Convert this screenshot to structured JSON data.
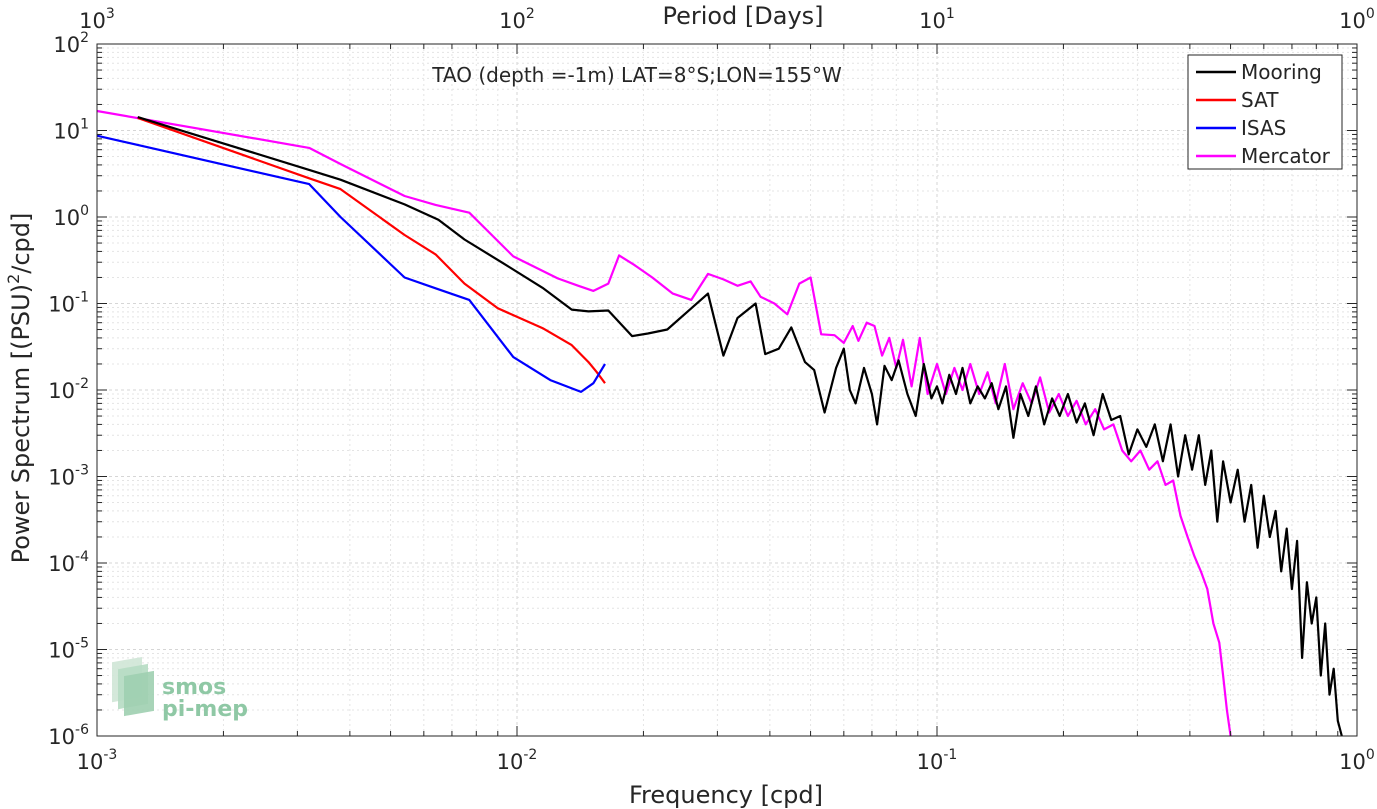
{
  "chart_data": {
    "type": "line",
    "title": "TAO (depth =-1m) LAT=8°S;LON=155°W",
    "xlabel": "Frequency [cpd]",
    "ylabel": "Power Spectrum [(PSU)",
    "ylabel_sup": "2",
    "ylabel_tail": "/cpd]",
    "top_xlabel": "Period [Days]",
    "x_scale": "log",
    "y_scale": "log",
    "xlim": [
      0.001,
      1
    ],
    "ylim": [
      1e-06,
      100
    ],
    "grid": true,
    "legend_position": "top-right",
    "x_ticks": [
      {
        "value": 0.001,
        "base": "10",
        "exp": "-3"
      },
      {
        "value": 0.01,
        "base": "10",
        "exp": "-2"
      },
      {
        "value": 0.1,
        "base": "10",
        "exp": "-1"
      },
      {
        "value": 1,
        "base": "10",
        "exp": "0"
      }
    ],
    "y_ticks": [
      {
        "value": 1e-06,
        "base": "10",
        "exp": "-6"
      },
      {
        "value": 1e-05,
        "base": "10",
        "exp": "-5"
      },
      {
        "value": 0.0001,
        "base": "10",
        "exp": "-4"
      },
      {
        "value": 0.001,
        "base": "10",
        "exp": "-3"
      },
      {
        "value": 0.01,
        "base": "10",
        "exp": "-2"
      },
      {
        "value": 0.1,
        "base": "10",
        "exp": "-1"
      },
      {
        "value": 1,
        "base": "10",
        "exp": "0"
      },
      {
        "value": 10,
        "base": "10",
        "exp": "1"
      },
      {
        "value": 100,
        "base": "10",
        "exp": "2"
      }
    ],
    "top_ticks": [
      {
        "value": 0.001,
        "base": "10",
        "exp": "3"
      },
      {
        "value": 0.01,
        "base": "10",
        "exp": "2"
      },
      {
        "value": 0.1,
        "base": "10",
        "exp": "1"
      },
      {
        "value": 1,
        "base": "10",
        "exp": "0"
      }
    ],
    "series": [
      {
        "name": "Mooring",
        "color": "#000000",
        "x": [
          0.00125,
          0.0032,
          0.0038,
          0.0054,
          0.0065,
          0.0075,
          0.0094,
          0.0115,
          0.0135,
          0.0148,
          0.0165,
          0.0188,
          0.0205,
          0.0228,
          0.026,
          0.0285,
          0.031,
          0.0335,
          0.037,
          0.039,
          0.042,
          0.045,
          0.0485,
          0.051,
          0.054,
          0.0575,
          0.06,
          0.062,
          0.064,
          0.067,
          0.07,
          0.072,
          0.075,
          0.078,
          0.081,
          0.085,
          0.089,
          0.093,
          0.097,
          0.1,
          0.103,
          0.107,
          0.111,
          0.115,
          0.12,
          0.125,
          0.13,
          0.135,
          0.14,
          0.146,
          0.152,
          0.158,
          0.165,
          0.172,
          0.18,
          0.188,
          0.196,
          0.205,
          0.215,
          0.225,
          0.236,
          0.248,
          0.26,
          0.273,
          0.286,
          0.3,
          0.315,
          0.33,
          0.345,
          0.36,
          0.375,
          0.39,
          0.405,
          0.42,
          0.435,
          0.45,
          0.465,
          0.48,
          0.5,
          0.52,
          0.54,
          0.56,
          0.58,
          0.6,
          0.62,
          0.64,
          0.66,
          0.68,
          0.7,
          0.72,
          0.74,
          0.76,
          0.78,
          0.8,
          0.82,
          0.84,
          0.86,
          0.88,
          0.9,
          0.92
        ],
        "y": [
          14.3,
          3.5,
          2.7,
          1.4,
          0.93,
          0.55,
          0.28,
          0.152,
          0.085,
          0.081,
          0.083,
          0.042,
          0.045,
          0.05,
          0.088,
          0.13,
          0.025,
          0.068,
          0.1,
          0.026,
          0.03,
          0.053,
          0.021,
          0.017,
          0.0055,
          0.018,
          0.03,
          0.01,
          0.007,
          0.018,
          0.009,
          0.004,
          0.019,
          0.013,
          0.022,
          0.009,
          0.005,
          0.02,
          0.008,
          0.011,
          0.007,
          0.015,
          0.009,
          0.018,
          0.007,
          0.011,
          0.008,
          0.012,
          0.006,
          0.011,
          0.0028,
          0.009,
          0.005,
          0.011,
          0.004,
          0.008,
          0.005,
          0.009,
          0.0042,
          0.007,
          0.003,
          0.009,
          0.0045,
          0.005,
          0.0018,
          0.0035,
          0.0022,
          0.004,
          0.0015,
          0.004,
          0.001,
          0.003,
          0.0012,
          0.003,
          0.0008,
          0.002,
          0.0003,
          0.0015,
          0.0005,
          0.0012,
          0.0003,
          0.0008,
          0.00015,
          0.0006,
          0.0002,
          0.0004,
          8e-05,
          0.00025,
          5e-05,
          0.00018,
          8e-06,
          6e-05,
          2e-05,
          4e-05,
          5e-06,
          2e-05,
          3e-06,
          6e-06,
          1.5e-06,
          1e-06
        ]
      },
      {
        "name": "SAT",
        "color": "#ff0000",
        "x": [
          0.00125,
          0.0032,
          0.0038,
          0.0054,
          0.0064,
          0.0075,
          0.009,
          0.0115,
          0.0135,
          0.0148,
          0.0155,
          0.0162
        ],
        "y": [
          14.0,
          2.8,
          2.1,
          0.62,
          0.37,
          0.17,
          0.088,
          0.052,
          0.033,
          0.021,
          0.016,
          0.012
        ]
      },
      {
        "name": "ISAS",
        "color": "#0000ff",
        "x": [
          0.001,
          0.0032,
          0.0038,
          0.0054,
          0.0064,
          0.0077,
          0.0098,
          0.012,
          0.0142,
          0.0152,
          0.0162
        ],
        "y": [
          8.7,
          2.4,
          1.0,
          0.2,
          0.15,
          0.11,
          0.024,
          0.013,
          0.0095,
          0.012,
          0.02
        ],
        "name_key": "ISAS"
      },
      {
        "name": "Mercator",
        "color": "#ff00ff",
        "x": [
          0.001,
          0.0032,
          0.0038,
          0.0054,
          0.0064,
          0.0077,
          0.0098,
          0.0125,
          0.014,
          0.0152,
          0.0165,
          0.0175,
          0.019,
          0.021,
          0.0235,
          0.026,
          0.0285,
          0.031,
          0.0335,
          0.036,
          0.038,
          0.041,
          0.044,
          0.047,
          0.05,
          0.053,
          0.057,
          0.06,
          0.063,
          0.065,
          0.068,
          0.071,
          0.074,
          0.077,
          0.08,
          0.083,
          0.087,
          0.091,
          0.095,
          0.1,
          0.105,
          0.11,
          0.115,
          0.12,
          0.126,
          0.132,
          0.138,
          0.145,
          0.152,
          0.16,
          0.168,
          0.176,
          0.185,
          0.195,
          0.205,
          0.215,
          0.226,
          0.238,
          0.25,
          0.263,
          0.276,
          0.29,
          0.305,
          0.32,
          0.335,
          0.35,
          0.365,
          0.38,
          0.395,
          0.41,
          0.425,
          0.44,
          0.455,
          0.47,
          0.48,
          0.49,
          0.5
        ],
        "y": [
          16.8,
          6.3,
          4.1,
          1.75,
          1.38,
          1.12,
          0.35,
          0.195,
          0.16,
          0.14,
          0.17,
          0.36,
          0.28,
          0.2,
          0.13,
          0.11,
          0.22,
          0.19,
          0.16,
          0.18,
          0.12,
          0.1,
          0.075,
          0.17,
          0.2,
          0.044,
          0.043,
          0.035,
          0.055,
          0.037,
          0.06,
          0.055,
          0.025,
          0.04,
          0.018,
          0.038,
          0.011,
          0.04,
          0.009,
          0.02,
          0.009,
          0.018,
          0.01,
          0.02,
          0.009,
          0.016,
          0.007,
          0.02,
          0.006,
          0.012,
          0.007,
          0.014,
          0.0055,
          0.009,
          0.005,
          0.0075,
          0.004,
          0.006,
          0.0035,
          0.004,
          0.002,
          0.0015,
          0.002,
          0.0012,
          0.0015,
          0.0008,
          0.0009,
          0.00035,
          0.0002,
          0.00012,
          8e-05,
          5e-05,
          2e-05,
          1.2e-05,
          5e-06,
          2e-06,
          1e-06
        ]
      }
    ],
    "logo": {
      "line1": "smos",
      "line2": "pi-mep"
    }
  }
}
